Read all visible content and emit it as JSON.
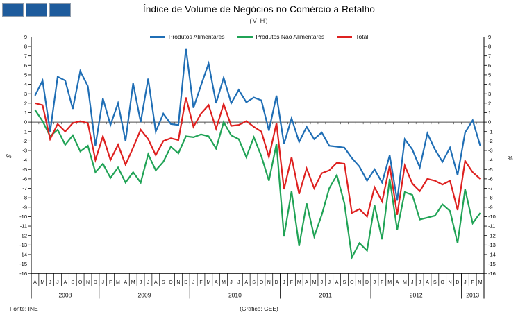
{
  "header": {
    "title": "Índice de Volume de Negócios no Comércio a Retalho",
    "subtitle": "(V H)"
  },
  "footer": {
    "source": "Fonte: INE",
    "credit": "(Gráfico: GEE)"
  },
  "axes": {
    "y_min": -16,
    "y_max": 9,
    "y_step": 1,
    "y_unit_label": "%"
  },
  "logo": {
    "squares": 3,
    "color": "#1E5B9C"
  },
  "chart_data": {
    "type": "line",
    "title": "Índice de Volume de Negócios no Comércio a Retalho",
    "subtitle": "(V H)",
    "ylabel": "%",
    "ylim": [
      -16,
      9
    ],
    "grid": false,
    "legend_position": "top",
    "x_months": [
      "A",
      "M",
      "J",
      "J",
      "A",
      "S",
      "O",
      "N",
      "D",
      "J",
      "F",
      "M",
      "A",
      "M",
      "J",
      "J",
      "A",
      "S",
      "O",
      "N",
      "D",
      "J",
      "F",
      "M",
      "A",
      "M",
      "J",
      "J",
      "A",
      "S",
      "O",
      "N",
      "D",
      "J",
      "F",
      "M",
      "A",
      "M",
      "J",
      "J",
      "A",
      "S",
      "O",
      "N",
      "D",
      "J",
      "F",
      "M",
      "A",
      "M",
      "J",
      "J",
      "A",
      "S",
      "O",
      "N",
      "D",
      "J",
      "F",
      "M"
    ],
    "year_groups": [
      {
        "label": "2008",
        "count": 9
      },
      {
        "label": "2009",
        "count": 12
      },
      {
        "label": "2010",
        "count": 12
      },
      {
        "label": "2011",
        "count": 12
      },
      {
        "label": "2012",
        "count": 12
      },
      {
        "label": "2013",
        "count": 3
      }
    ],
    "series": [
      {
        "name": "Produtos Alimentares",
        "color": "#1F6EB5",
        "values": [
          2.8,
          4.4,
          -1.0,
          4.8,
          4.4,
          1.4,
          5.4,
          3.8,
          -2.5,
          2.5,
          -0.3,
          2.0,
          -2.0,
          4.1,
          0.0,
          4.6,
          -1.0,
          0.9,
          -0.2,
          -0.3,
          7.8,
          1.5,
          3.9,
          6.2,
          2.0,
          4.7,
          2.0,
          3.4,
          2.1,
          2.6,
          2.3,
          -0.9,
          2.8,
          -2.3,
          0.4,
          -2.1,
          -0.5,
          -1.8,
          -1.1,
          -2.5,
          -2.6,
          -2.7,
          -3.8,
          -4.7,
          -6.2,
          -5.0,
          -6.4,
          -3.5,
          -8.3,
          -1.8,
          -2.9,
          -4.8,
          -1.2,
          -2.9,
          -4.2,
          -2.7,
          -5.6,
          -1.1,
          0.2,
          -2.5
        ]
      },
      {
        "name": "Produtos Não Alimentares",
        "color": "#20A356",
        "values": [
          1.3,
          0.1,
          -1.5,
          -0.8,
          -2.4,
          -1.4,
          -3.1,
          -2.5,
          -5.3,
          -4.4,
          -5.9,
          -4.8,
          -6.4,
          -5.3,
          -6.4,
          -3.4,
          -5.1,
          -4.2,
          -2.6,
          -3.3,
          -1.5,
          -1.6,
          -1.3,
          -1.5,
          -2.8,
          0.0,
          -1.4,
          -1.8,
          -3.7,
          -1.6,
          -3.6,
          -6.2,
          -2.3,
          -12.1,
          -7.3,
          -13.1,
          -8.6,
          -12.1,
          -9.8,
          -7.0,
          -5.6,
          -8.6,
          -14.3,
          -12.8,
          -13.6,
          -8.8,
          -12.4,
          -6.0,
          -11.4,
          -7.4,
          -7.7,
          -10.3,
          -10.1,
          -9.9,
          -8.7,
          -9.4,
          -12.8,
          -7.1,
          -10.7,
          -9.6
        ]
      },
      {
        "name": "Total",
        "color": "#DE2120",
        "values": [
          2.0,
          1.8,
          -1.8,
          -0.2,
          -1.0,
          -0.1,
          0.1,
          -0.1,
          -4.0,
          -1.5,
          -4.0,
          -2.4,
          -4.5,
          -2.7,
          -0.8,
          -1.8,
          -3.5,
          -2.0,
          -1.7,
          -1.9,
          2.6,
          -0.5,
          0.9,
          1.8,
          -0.7,
          1.9,
          -0.4,
          -0.3,
          0.1,
          -0.5,
          -1.0,
          -3.7,
          -0.1,
          -7.1,
          -3.7,
          -7.6,
          -4.9,
          -7.0,
          -5.4,
          -5.1,
          -4.3,
          -4.4,
          -9.6,
          -9.2,
          -10.0,
          -6.9,
          -8.4,
          -4.6,
          -9.8,
          -4.6,
          -6.5,
          -7.3,
          -6.0,
          -6.2,
          -6.6,
          -6.2,
          -9.3,
          -4.1,
          -5.3,
          -6.0
        ]
      }
    ]
  }
}
